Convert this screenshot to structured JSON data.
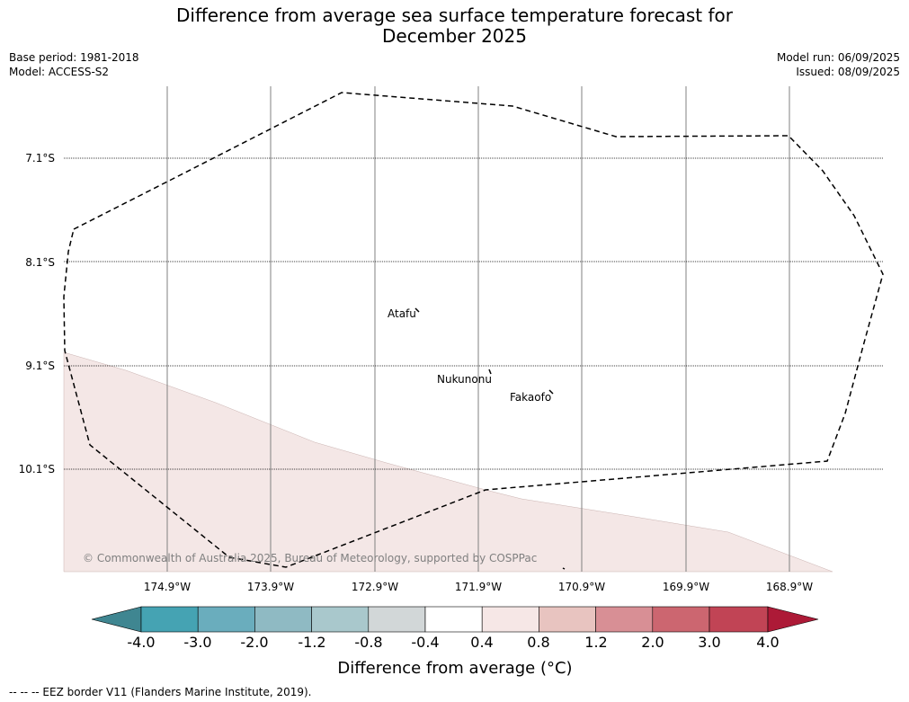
{
  "title_line1": "Difference from average sea surface temperature forecast for",
  "title_line2": "December 2025",
  "meta_left": {
    "base_period": "Base period: 1981-2018",
    "model": "Model: ACCESS-S2"
  },
  "meta_right": {
    "model_run": "Model run: 06/09/2025",
    "issued": "Issued: 08/09/2025"
  },
  "lat_labels": [
    "7.1°S",
    "8.1°S",
    "9.1°S",
    "10.1°S"
  ],
  "lon_labels": [
    "174.9°W",
    "173.9°W",
    "172.9°W",
    "171.9°W",
    "170.9°W",
    "169.9°W",
    "168.9°W"
  ],
  "places": {
    "atafu": "Atafu",
    "nukunonu": "Nukunonu",
    "fakaofo": "Fakaofo"
  },
  "copyright": "© Commonwealth of Australia 2025, Bureau of Meteorology, supported by COSPPac",
  "colorbar": {
    "ticks": [
      "-4.0",
      "-3.0",
      "-2.0",
      "-1.2",
      "-0.8",
      "-0.4",
      "0.4",
      "0.8",
      "1.2",
      "2.0",
      "3.0",
      "4.0"
    ],
    "colors": [
      "#3f8691",
      "#45a3b3",
      "#6aadbd",
      "#8fbac3",
      "#a9c8cc",
      "#d2d7d8",
      "#ffffff",
      "#f6e7e6",
      "#e8c4c0",
      "#d88f95",
      "#cc6670",
      "#c14455",
      "#ad1a37"
    ],
    "label": "Difference from average (°C)"
  },
  "legend_footnote": "--  --  -- EEZ border V11 (Flanders Marine Institute, 2019).",
  "shading_colors": {
    "anomaly_0.4_to_0.8": "#f4e7e6"
  }
}
